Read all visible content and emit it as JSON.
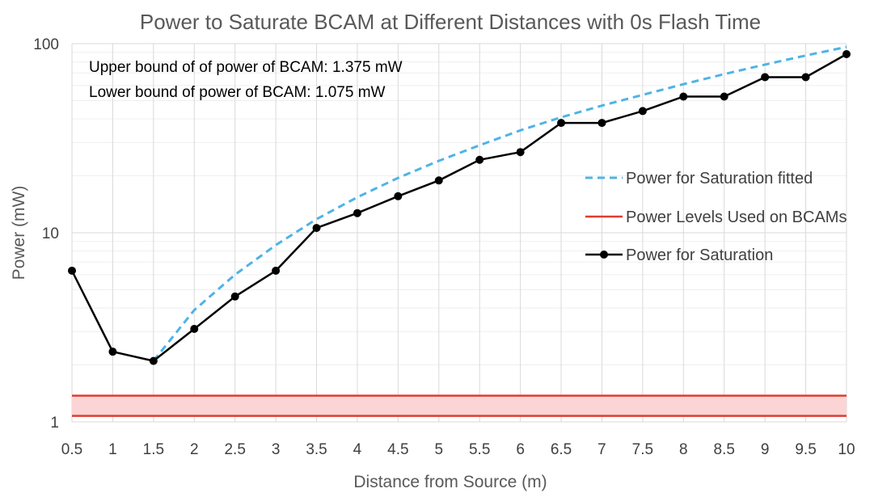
{
  "chart_data": {
    "type": "line",
    "title": "Power to Saturate BCAM at Different Distances with 0s Flash Time",
    "xlabel": "Distance from Source (m)",
    "ylabel": "Power (mW)",
    "yscale": "log",
    "ylim": [
      1,
      100
    ],
    "xlim": [
      0.5,
      10
    ],
    "x_ticks": [
      "0.5",
      "1",
      "1.5",
      "2",
      "2.5",
      "3",
      "3.5",
      "4",
      "4.5",
      "5",
      "5.5",
      "6",
      "6.5",
      "7",
      "7.5",
      "8",
      "8.5",
      "9",
      "9.5",
      "10"
    ],
    "y_ticks": [
      {
        "value": 1,
        "label": "1"
      },
      {
        "value": 10,
        "label": "10"
      },
      {
        "value": 100,
        "label": "100"
      }
    ],
    "grid": true,
    "legend_position": "right",
    "annotations": [
      "Upper bound of of power of BCAM: 1.375 mW",
      "Lower bound of power of BCAM: 1.075 mW"
    ],
    "series": [
      {
        "name": "Power for Saturation fitted",
        "style": "dashed",
        "color": "#4fb3e6",
        "x": [
          1.5,
          2,
          2.5,
          3,
          3.5,
          4,
          4.5,
          5,
          5.5,
          6,
          6.5,
          7,
          7.5,
          8,
          8.5,
          9,
          9.5,
          10
        ],
        "y": [
          2.1,
          3.9,
          6.0,
          8.6,
          11.8,
          15.4,
          19.5,
          24.0,
          29.0,
          34.8,
          40.8,
          47.0,
          53.6,
          61.0,
          69.0,
          77.5,
          86.5,
          96.0
        ]
      },
      {
        "name": "Power Levels Used on BCAMs",
        "style": "band",
        "color": "#e03c31",
        "fill": "#fbd5d5",
        "bounds": [
          1.075,
          1.375
        ]
      },
      {
        "name": "Power for Saturation",
        "style": "line-marker",
        "color": "#000000",
        "x": [
          0.5,
          1,
          1.5,
          2,
          2.5,
          3,
          3.5,
          4,
          4.5,
          5,
          5.5,
          6,
          6.5,
          7,
          7.5,
          8,
          8.5,
          9,
          9.5,
          10
        ],
        "y": [
          6.3,
          2.35,
          2.1,
          3.1,
          4.6,
          6.3,
          10.6,
          12.7,
          15.6,
          18.9,
          24.3,
          26.7,
          38.1,
          38.1,
          44.0,
          52.5,
          52.5,
          66.5,
          66.5,
          88.0
        ]
      }
    ]
  }
}
